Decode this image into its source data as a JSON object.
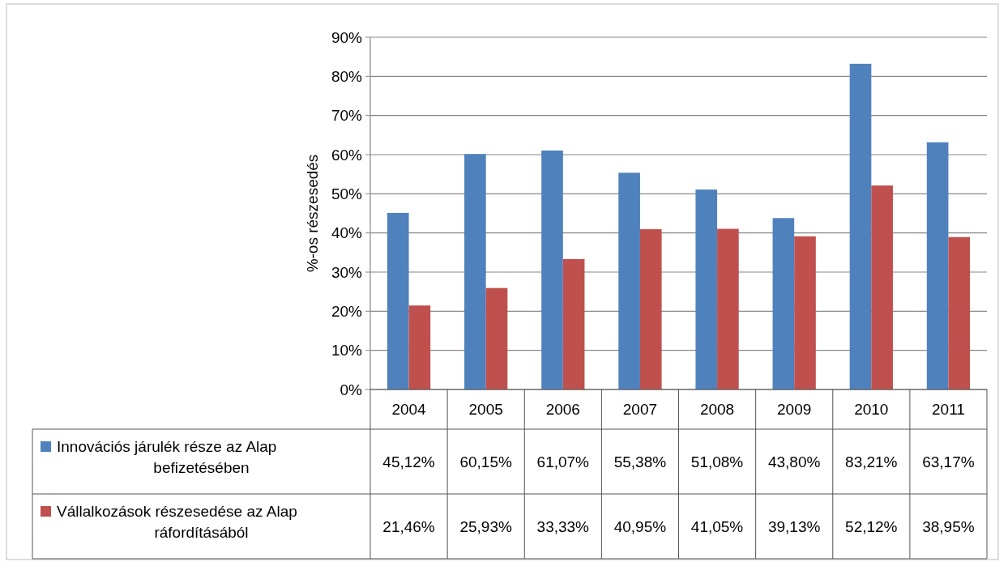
{
  "chart_data": {
    "type": "bar",
    "ylabel": "%-os részesedés",
    "categories": [
      "2004",
      "2005",
      "2006",
      "2007",
      "2008",
      "2009",
      "2010",
      "2011"
    ],
    "series": [
      {
        "name": "Innovációs járulék része az Alap befizetésében",
        "color": "#4f81bd",
        "values": [
          45.12,
          60.15,
          61.07,
          55.38,
          51.08,
          43.8,
          83.21,
          63.17
        ],
        "value_labels": [
          "45,12%",
          "60,15%",
          "61,07%",
          "55,38%",
          "51,08%",
          "43,80%",
          "83,21%",
          "63,17%"
        ]
      },
      {
        "name": "Vállalkozások részesedése az Alap ráfordításából",
        "color": "#c0504d",
        "values": [
          21.46,
          25.93,
          33.33,
          40.95,
          41.05,
          39.13,
          52.12,
          38.95
        ],
        "value_labels": [
          "21,46%",
          "25,93%",
          "33,33%",
          "40,95%",
          "41,05%",
          "39,13%",
          "52,12%",
          "38,95%"
        ]
      }
    ],
    "ylim": [
      0,
      90
    ],
    "yticks": [
      {
        "value": 0,
        "label": "0%"
      },
      {
        "value": 10,
        "label": "10%"
      },
      {
        "value": 20,
        "label": "20%"
      },
      {
        "value": 30,
        "label": "30%"
      },
      {
        "value": 40,
        "label": "40%"
      },
      {
        "value": 50,
        "label": "50%"
      },
      {
        "value": 60,
        "label": "60%"
      },
      {
        "value": 70,
        "label": "70%"
      },
      {
        "value": 80,
        "label": "80%"
      },
      {
        "value": 90,
        "label": "90%"
      }
    ],
    "grid": "y",
    "legend": "bottom"
  }
}
